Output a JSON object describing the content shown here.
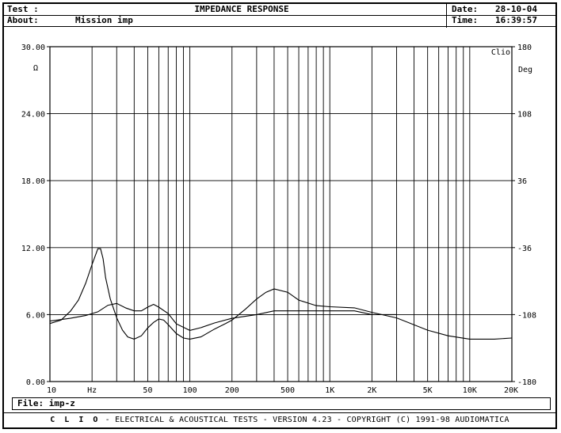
{
  "header": {
    "test_label": "Test :",
    "title": "IMPEDANCE RESPONSE",
    "date_label": "Date:",
    "date_value": "28-10-04",
    "about_label": "About:",
    "about_value": "Mission imp",
    "time_label": "Time:",
    "time_value": "16:39:57"
  },
  "file": {
    "label": "File:",
    "value": "imp-z"
  },
  "footer": {
    "brand": "C L I O",
    "text": "- ELECTRICAL & ACOUSTICAL TESTS - VERSION 4.23 - COPYRIGHT (C) 1991-98 AUDIOMATICA"
  },
  "clio_tag": "Clio",
  "chart_data": {
    "type": "line",
    "x_scale": "log",
    "xlim": [
      10,
      20000
    ],
    "ylim": [
      0,
      30
    ],
    "y2lim": [
      -180,
      180
    ],
    "grid": true,
    "xlabel": "Hz",
    "ylabel": "Ω",
    "y2label": "Deg",
    "x_ticks": [
      {
        "v": 10,
        "label": "10"
      },
      {
        "v": 50,
        "label": "50"
      },
      {
        "v": 100,
        "label": "100"
      },
      {
        "v": 200,
        "label": "200"
      },
      {
        "v": 500,
        "label": "500"
      },
      {
        "v": 1000,
        "label": "1K"
      },
      {
        "v": 2000,
        "label": "2K"
      },
      {
        "v": 5000,
        "label": "5K"
      },
      {
        "v": 10000,
        "label": "10K"
      },
      {
        "v": 20000,
        "label": "20K"
      }
    ],
    "y_ticks": [
      {
        "v": 0,
        "label": "0.00"
      },
      {
        "v": 6,
        "label": "6.00"
      },
      {
        "v": 12,
        "label": "12.00"
      },
      {
        "v": 18,
        "label": "18.00"
      },
      {
        "v": 24,
        "label": "24.00"
      },
      {
        "v": 30,
        "label": "30.00"
      }
    ],
    "y2_ticks": [
      {
        "v": -180,
        "label": "-180"
      },
      {
        "v": -108,
        "label": "-108"
      },
      {
        "v": -36,
        "label": "-36"
      },
      {
        "v": 36,
        "label": "36"
      },
      {
        "v": 108,
        "label": "108"
      },
      {
        "v": 180,
        "label": "180"
      }
    ],
    "series": [
      {
        "name": "",
        "axis": "left",
        "x": [
          10,
          12,
          14,
          16,
          18,
          20,
          22,
          23,
          24,
          25,
          27,
          30,
          33,
          36,
          40,
          45,
          50,
          55,
          60,
          65,
          70,
          80,
          90,
          100,
          120,
          150,
          180,
          200,
          250,
          300,
          350,
          400,
          500,
          600,
          800,
          1000,
          1500,
          2000,
          3000,
          5000,
          7000,
          10000,
          15000,
          20000
        ],
        "y": [
          5.2,
          5.5,
          6.3,
          7.3,
          8.8,
          10.5,
          11.9,
          11.9,
          11.0,
          9.3,
          7.4,
          5.7,
          4.6,
          4.0,
          3.8,
          4.1,
          4.8,
          5.3,
          5.6,
          5.5,
          5.1,
          4.3,
          3.9,
          3.8,
          4.0,
          4.7,
          5.2,
          5.5,
          6.5,
          7.4,
          8.0,
          8.3,
          8.0,
          7.3,
          6.8,
          6.7,
          6.6,
          6.2,
          5.7,
          4.6,
          4.1,
          3.8,
          3.8,
          3.9
        ]
      },
      {
        "name": "",
        "axis": "right",
        "x": [
          10,
          14,
          18,
          22,
          26,
          30,
          35,
          40,
          45,
          50,
          55,
          60,
          70,
          80,
          100,
          120,
          150,
          200,
          300,
          400,
          500,
          700,
          1000,
          1500,
          2000,
          2500,
          3000
        ],
        "y": [
          -115,
          -112,
          -109,
          -105,
          -98,
          -96,
          -101,
          -104,
          -104,
          -100,
          -97,
          -100,
          -107,
          -118,
          -125,
          -122,
          -117,
          -112,
          -108,
          -104,
          -104,
          -104,
          -104,
          -104,
          -108,
          -108,
          -108
        ]
      }
    ]
  }
}
